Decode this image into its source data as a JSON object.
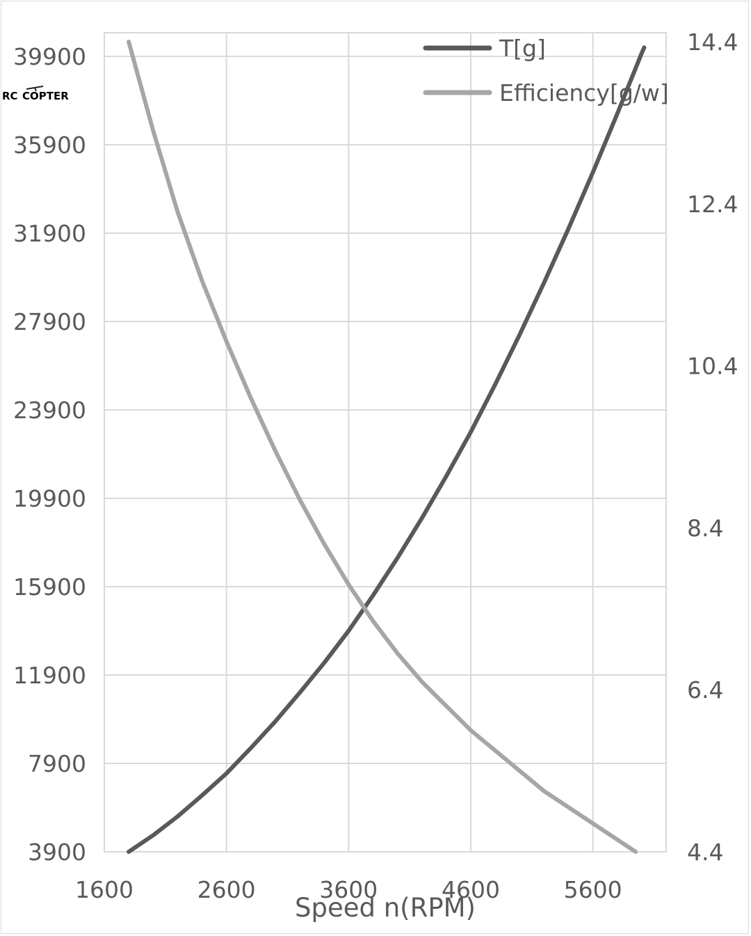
{
  "chart_data": {
    "type": "line",
    "xlabel": "Speed n(RPM)",
    "x_ticks": [
      1600,
      2600,
      3600,
      4600,
      5600
    ],
    "xlim": [
      1600,
      6200
    ],
    "y_left_ticks": [
      3900,
      7900,
      11900,
      15900,
      19900,
      23900,
      27900,
      31900,
      35900,
      39900
    ],
    "y_left_lim": [
      3900,
      41000
    ],
    "y_right_ticks": [
      "4.4",
      "6.4",
      "8.4",
      "10.4",
      "12.4",
      "14.4"
    ],
    "y_right_lim": [
      4.4,
      14.4
    ],
    "grid": true,
    "legend_position": "top-right",
    "series": [
      {
        "name": "T[g]",
        "axis": "left",
        "color": "#595959",
        "x": [
          1800,
          2000,
          2200,
          2400,
          2600,
          2800,
          3000,
          3200,
          3400,
          3600,
          3800,
          4000,
          4200,
          4400,
          4600,
          4800,
          5000,
          5200,
          5400,
          5600,
          5800,
          6000,
          6020
        ],
        "y": [
          3900,
          4650,
          5500,
          6450,
          7450,
          8600,
          9800,
          11100,
          12450,
          13900,
          15500,
          17200,
          19000,
          20900,
          22900,
          25050,
          27300,
          29650,
          32100,
          34650,
          37300,
          40050,
          40300
        ]
      },
      {
        "name": "Efficiency[g/w]",
        "axis": "right",
        "color": "#a6a6a6",
        "x": [
          1800,
          2000,
          2200,
          2400,
          2600,
          2800,
          3000,
          3200,
          3400,
          3600,
          3800,
          4000,
          4200,
          4400,
          4600,
          4800,
          5000,
          5200,
          5400,
          5600,
          5800,
          5950
        ],
        "y": [
          14.4,
          13.3,
          12.3,
          11.45,
          10.7,
          10.0,
          9.35,
          8.75,
          8.2,
          7.7,
          7.25,
          6.85,
          6.5,
          6.2,
          5.9,
          5.65,
          5.4,
          5.15,
          4.95,
          4.75,
          4.55,
          4.4
        ]
      }
    ]
  },
  "logo": {
    "text_left": "RC",
    "text_right": "COPTER",
    "color_left": "#2a9fd6",
    "color_right": "#222222"
  }
}
